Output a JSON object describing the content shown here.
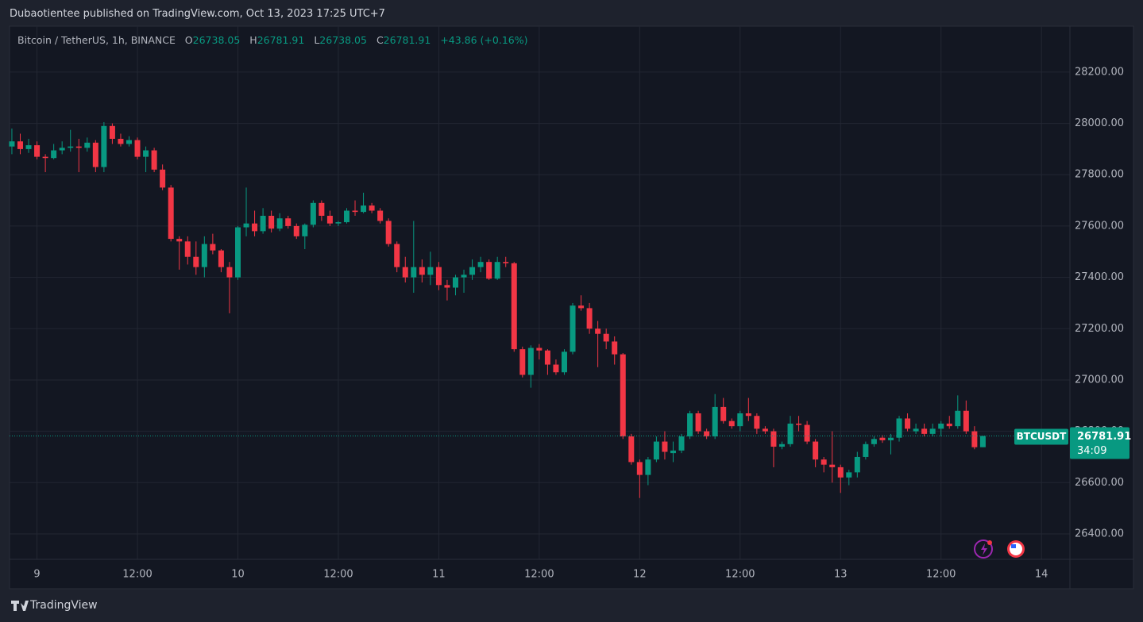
{
  "header": "Dubaotientee published on TradingView.com, Oct 13, 2023 17:25 UTC+7",
  "footer_logo": "TradingView",
  "chart_data": {
    "type": "candlestick",
    "title": "Bitcoin / TetherUS, 1h, BINANCE",
    "legend_letters": [
      "O",
      "H",
      "L",
      "C"
    ],
    "change": "+43.86 (+0.16%)",
    "countdown": "34:09",
    "series": [
      {
        "name": "BTCUSDT",
        "up_color": "#089981",
        "down_color": "#f23645",
        "open": [
          27910,
          27930,
          27900,
          27915,
          27870,
          27865,
          27895,
          27905,
          27910,
          27905,
          27925,
          27830,
          27990,
          27940,
          27920,
          27935,
          27870,
          27895,
          27820,
          27750,
          27550,
          27540,
          27480,
          27440,
          27530,
          27505,
          27440,
          27400,
          27595,
          27610,
          27580,
          27640,
          27590,
          27630,
          27600,
          27560,
          27605,
          27690,
          27640,
          27610,
          27615,
          27660,
          27655,
          27680,
          27660,
          27620,
          27530,
          27440,
          27400,
          27440,
          27410,
          27440,
          27370,
          27360,
          27400,
          27410,
          27440,
          27460,
          27395,
          27460,
          27455,
          27120,
          27020,
          27125,
          27115,
          27060,
          27030,
          27110,
          27290,
          27280,
          27200,
          27180,
          27150,
          27100,
          26780,
          26680,
          26630,
          26690,
          26760,
          26715,
          26725,
          26780,
          26870,
          26800,
          26780,
          26895,
          26840,
          26820,
          26870,
          26860,
          26810,
          26800,
          26740,
          26750,
          26830,
          26825,
          26760,
          26690,
          26670,
          26660,
          26620,
          26640,
          26700,
          26750,
          26775,
          26765,
          26775,
          26850,
          26800,
          26810,
          26790,
          26810,
          26830,
          26820,
          26880,
          26800,
          26738.05
        ],
        "high": [
          27980,
          27960,
          27940,
          27930,
          27880,
          27920,
          27930,
          27975,
          27940,
          27945,
          27935,
          28005,
          28000,
          27960,
          27950,
          27945,
          27910,
          27905,
          27840,
          27760,
          27560,
          27560,
          27540,
          27560,
          27570,
          27510,
          27460,
          27600,
          27750,
          27660,
          27670,
          27660,
          27650,
          27640,
          27610,
          27610,
          27700,
          27700,
          27660,
          27620,
          27670,
          27700,
          27730,
          27690,
          27670,
          27630,
          27540,
          27480,
          27620,
          27470,
          27500,
          27460,
          27390,
          27410,
          27430,
          27470,
          27480,
          27470,
          27480,
          27480,
          27460,
          27130,
          27135,
          27140,
          27120,
          27080,
          27120,
          27300,
          27330,
          27300,
          27230,
          27200,
          27170,
          27105,
          26790,
          26690,
          26700,
          26780,
          26800,
          26760,
          26790,
          26880,
          26880,
          26810,
          26945,
          26930,
          26850,
          26880,
          26930,
          26870,
          26820,
          26810,
          26760,
          26860,
          26860,
          26840,
          26770,
          26700,
          26800,
          26670,
          26650,
          26720,
          26760,
          26780,
          26785,
          26790,
          26860,
          26870,
          26830,
          26830,
          26830,
          26840,
          26860,
          26940,
          26920,
          26820,
          26781.91
        ],
        "low": [
          27880,
          27880,
          27885,
          27860,
          27810,
          27860,
          27880,
          27890,
          27810,
          27890,
          27810,
          27810,
          27920,
          27910,
          27910,
          27860,
          27810,
          27810,
          27740,
          27540,
          27430,
          27450,
          27410,
          27400,
          27490,
          27420,
          27260,
          27390,
          27560,
          27560,
          27570,
          27575,
          27580,
          27590,
          27550,
          27510,
          27595,
          27620,
          27600,
          27600,
          27610,
          27640,
          27650,
          27650,
          27610,
          27520,
          27420,
          27380,
          27340,
          27380,
          27370,
          27350,
          27310,
          27330,
          27340,
          27390,
          27420,
          27390,
          27390,
          27440,
          27110,
          27010,
          26970,
          27080,
          27020,
          27020,
          27020,
          27100,
          27270,
          27180,
          27050,
          27120,
          27060,
          26770,
          26670,
          26540,
          26590,
          26680,
          26690,
          26680,
          26715,
          26770,
          26790,
          26770,
          26770,
          26830,
          26810,
          26800,
          26840,
          26790,
          26790,
          26660,
          26730,
          26740,
          26800,
          26750,
          26660,
          26640,
          26600,
          26560,
          26590,
          26620,
          26690,
          26740,
          26755,
          26710,
          26760,
          26800,
          26790,
          26780,
          26780,
          26780,
          26810,
          26810,
          26790,
          26730,
          26738.05
        ],
        "close": [
          27930,
          27900,
          27915,
          27870,
          27865,
          27895,
          27905,
          27910,
          27905,
          27925,
          27830,
          27990,
          27940,
          27920,
          27935,
          27870,
          27895,
          27820,
          27750,
          27550,
          27540,
          27480,
          27440,
          27530,
          27505,
          27440,
          27400,
          27595,
          27610,
          27580,
          27640,
          27590,
          27630,
          27600,
          27560,
          27605,
          27690,
          27640,
          27610,
          27615,
          27660,
          27655,
          27680,
          27660,
          27620,
          27530,
          27440,
          27400,
          27440,
          27410,
          27440,
          27370,
          27360,
          27400,
          27410,
          27440,
          27460,
          27395,
          27460,
          27455,
          27120,
          27020,
          27125,
          27115,
          27060,
          27030,
          27110,
          27290,
          27280,
          27200,
          27180,
          27150,
          27100,
          26780,
          26680,
          26630,
          26690,
          26760,
          26720,
          26725,
          26780,
          26870,
          26800,
          26780,
          26895,
          26840,
          26820,
          26870,
          26860,
          26810,
          26800,
          26740,
          26750,
          26830,
          26825,
          26760,
          26690,
          26670,
          26660,
          26620,
          26640,
          26700,
          26750,
          26770,
          26765,
          26775,
          26850,
          26810,
          26810,
          26790,
          26810,
          26830,
          26820,
          26880,
          26800,
          26738,
          26781.91
        ]
      }
    ],
    "ylim": [
      26301,
      28379
    ],
    "yticks": [
      {
        "value": 26400,
        "label": "26400.00"
      },
      {
        "value": 26600,
        "label": "26600.00"
      },
      {
        "value": 26800,
        "label": "26800.00"
      },
      {
        "value": 27000,
        "label": "27000.00"
      },
      {
        "value": 27200,
        "label": "27200.00"
      },
      {
        "value": 27400,
        "label": "27400.00"
      },
      {
        "value": 27600,
        "label": "27600.00"
      },
      {
        "value": 27800,
        "label": "27800.00"
      },
      {
        "value": 28000,
        "label": "28000.00"
      },
      {
        "value": 28200,
        "label": "28200.00"
      }
    ],
    "xlim": [
      -0.28,
      126.4
    ],
    "xticks": [
      {
        "value": 3,
        "label": "9"
      },
      {
        "value": 15,
        "label": "12:00"
      },
      {
        "value": 27,
        "label": "10"
      },
      {
        "value": 39,
        "label": "12:00"
      },
      {
        "value": 51,
        "label": "11"
      },
      {
        "value": 63,
        "label": "12:00"
      },
      {
        "value": 75,
        "label": "12"
      },
      {
        "value": 87,
        "label": "12:00"
      },
      {
        "value": 99,
        "label": "13"
      },
      {
        "value": 111,
        "label": "12:00"
      },
      {
        "value": 123,
        "label": "14"
      }
    ],
    "grid": true
  }
}
